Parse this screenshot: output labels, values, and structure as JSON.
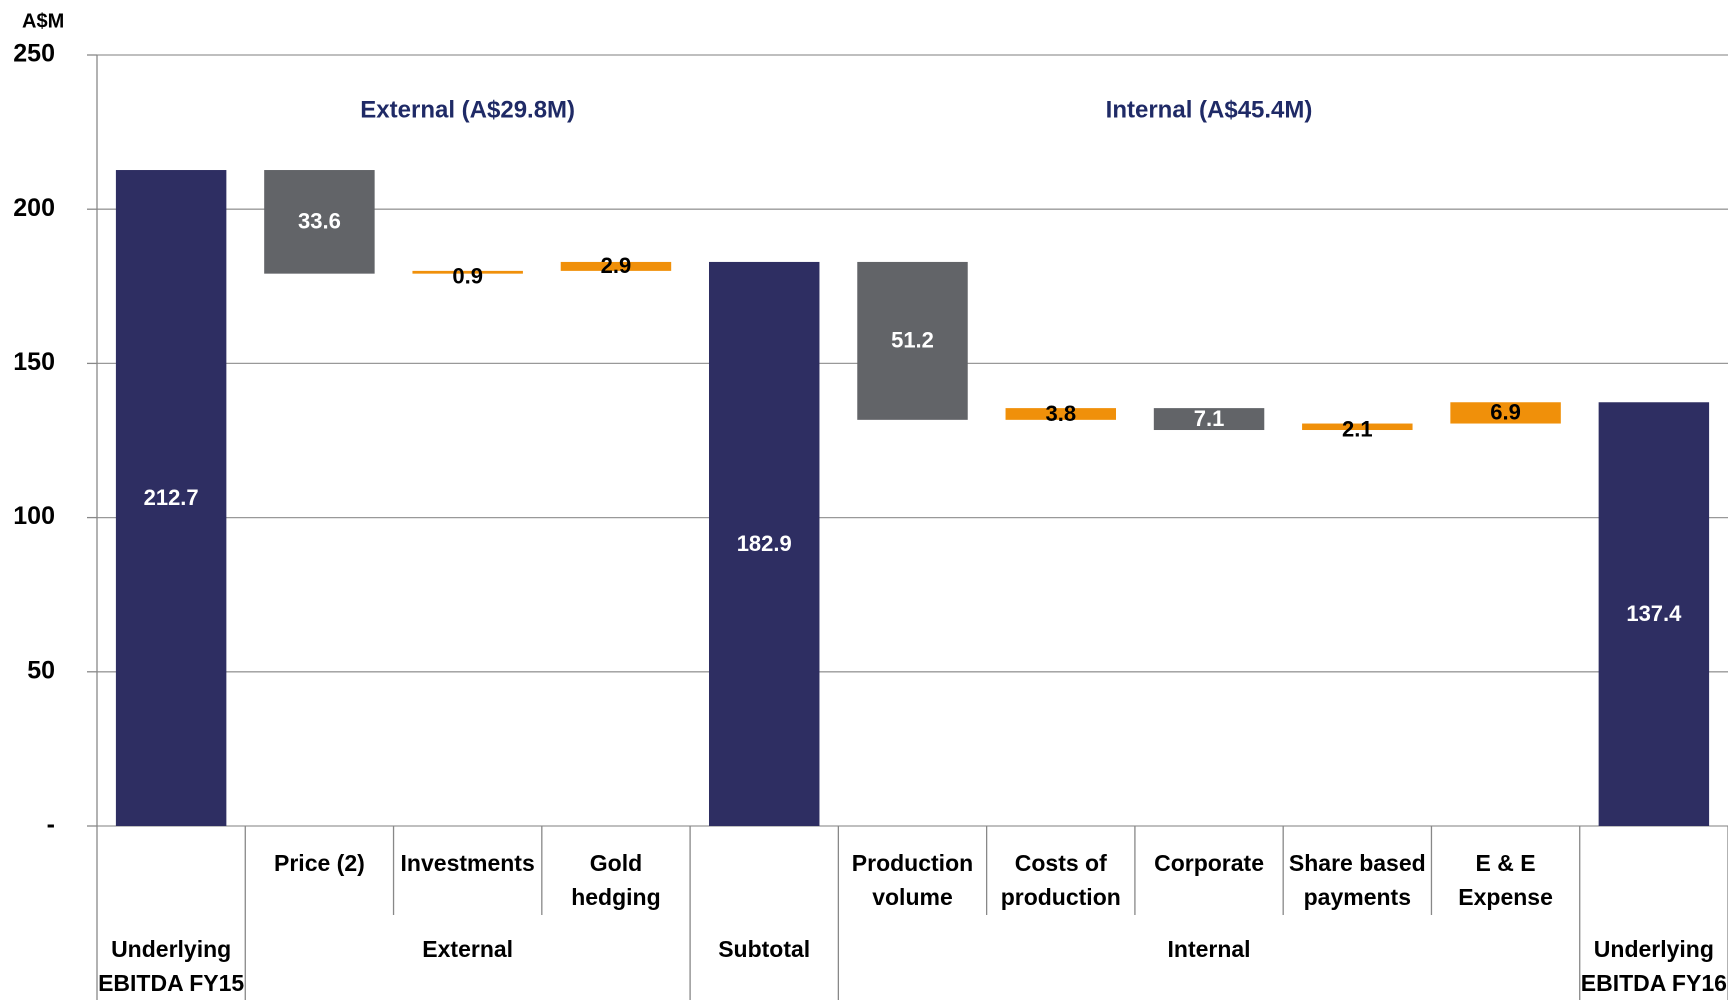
{
  "chart_data": {
    "type": "waterfall",
    "y_label": "A$M",
    "categories": [
      null,
      "Price  (2)",
      "Investments",
      "Gold\nhedging",
      null,
      "Production\nvolume",
      "Costs of\nproduction",
      "Corporate",
      "Share based\npayments",
      "E & E\nExpense",
      null
    ],
    "values": [
      212.7,
      -33.6,
      0.9,
      2.9,
      182.9,
      -51.2,
      3.8,
      -7.1,
      2.1,
      6.9,
      137.4
    ],
    "value_labels": [
      "212.7",
      "33.6",
      "0.9",
      "2.9",
      "182.9",
      "51.2",
      "3.8",
      "7.1",
      "2.1",
      "6.9",
      "137.4"
    ],
    "is_total": [
      true,
      false,
      false,
      false,
      true,
      false,
      false,
      false,
      false,
      false,
      true
    ],
    "colors": [
      "#2e2e62",
      "#626468",
      "#f0900a",
      "#f0900a",
      "#2e2e62",
      "#626468",
      "#f0900a",
      "#626468",
      "#f0900a",
      "#f0900a",
      "#2e2e62"
    ],
    "groups": [
      {
        "label": "Underlying\nEBITDA FY15",
        "start": 0,
        "end": 0
      },
      {
        "label": "External",
        "start": 1,
        "end": 3
      },
      {
        "label": "Subtotal",
        "start": 4,
        "end": 4
      },
      {
        "label": "Internal",
        "start": 5,
        "end": 9
      },
      {
        "label": "Underlying\nEBITDA FY16",
        "start": 10,
        "end": 10
      }
    ],
    "annotations": [
      {
        "text": "External (A$29.8M)",
        "group": 1
      },
      {
        "text": "Internal (A$45.4M)",
        "group": 3
      }
    ],
    "ylim": [
      0,
      250
    ],
    "yticks": [
      {
        "value": 0,
        "label": "-"
      },
      50,
      100,
      150,
      200,
      250
    ],
    "grid": true
  }
}
